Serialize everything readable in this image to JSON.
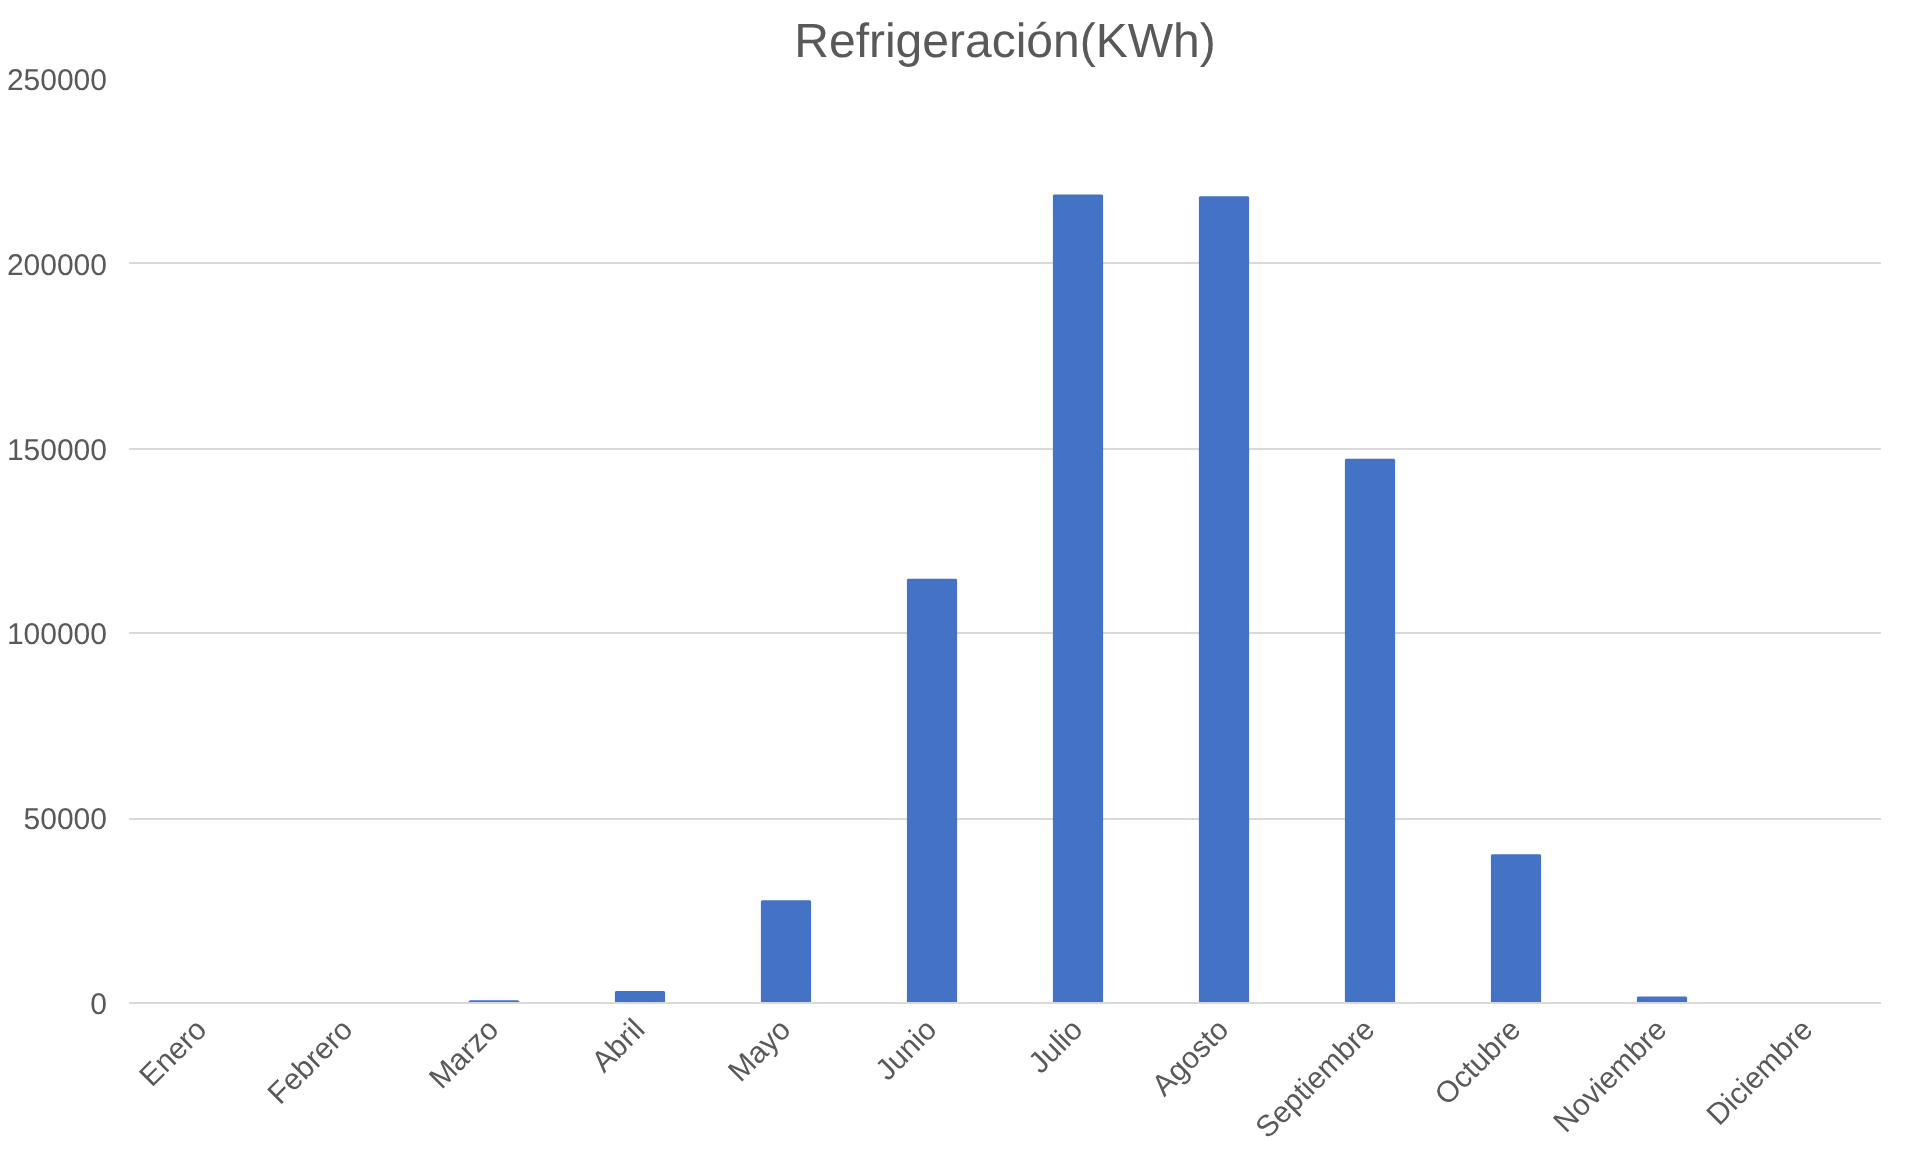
{
  "chart_data": {
    "type": "bar",
    "title": "Refrigeración(KWh)",
    "categories": [
      "Enero",
      "Febrero",
      "Marzo",
      "Abril",
      "Mayo",
      "Junio",
      "Julio",
      "Agosto",
      "Septiembre",
      "Octubre",
      "Noviembre",
      "Diciembre"
    ],
    "values": [
      0,
      0,
      500,
      3000,
      27500,
      114500,
      218500,
      218000,
      147000,
      40000,
      1500,
      0
    ],
    "color": "#4472c4",
    "ylim": [
      0,
      250000
    ],
    "yticks": [
      0,
      50000,
      100000,
      150000,
      200000,
      250000
    ],
    "grid": "y"
  }
}
